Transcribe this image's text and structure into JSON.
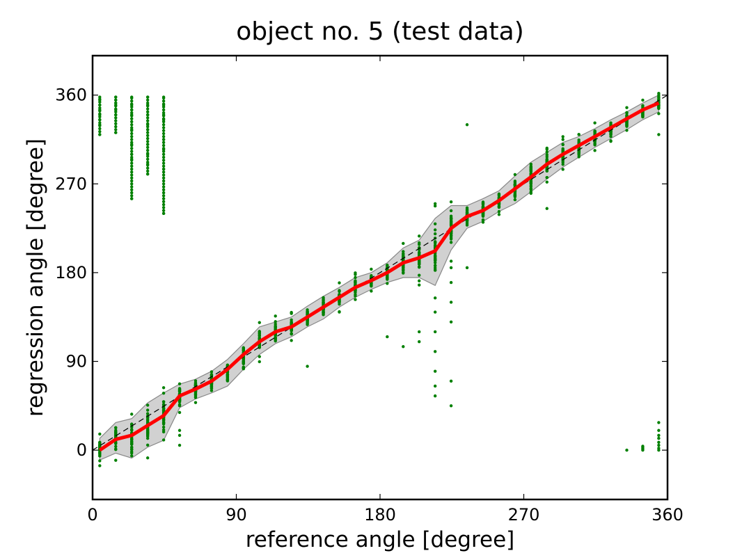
{
  "chart_data": {
    "type": "scatter",
    "title": "object no. 5 (test data)",
    "xlabel": "reference angle [degree]",
    "ylabel": "regression angle [degree]",
    "xlim": [
      0,
      360
    ],
    "ylim": [
      -50,
      400
    ],
    "xticks": [
      "0",
      "90",
      "180",
      "270",
      "360"
    ],
    "yticks": [
      "0",
      "90",
      "180",
      "270",
      "360"
    ],
    "grid": false,
    "colors": {
      "points": "#008000",
      "mean_line": "#ff0000",
      "band_fill": "#cccccc",
      "band_edge": "#888888",
      "identity_line": "#000000"
    },
    "x": [
      4.5,
      14.5,
      24.5,
      34.5,
      44.5,
      54.5,
      64.5,
      74.5,
      84.5,
      94.5,
      104.5,
      114.5,
      124.5,
      134.5,
      144.5,
      154.5,
      164.5,
      174.5,
      184.5,
      194.5,
      204.5,
      214.5,
      224.5,
      234.5,
      244.5,
      254.5,
      264.5,
      274.5,
      284.5,
      294.5,
      304.5,
      314.5,
      324.5,
      334.5,
      344.5,
      354.5
    ],
    "series": [
      {
        "role": "mean",
        "values": [
          0,
          11,
          15,
          25,
          35,
          55,
          62,
          70,
          82,
          97,
          110,
          120,
          125,
          135,
          145,
          155,
          165,
          172,
          180,
          190,
          195,
          202,
          225,
          237,
          243,
          253,
          265,
          277,
          290,
          300,
          309,
          318,
          327,
          336,
          345,
          352
        ]
      },
      {
        "role": "band_upper",
        "values": [
          12,
          28,
          32,
          48,
          58,
          67,
          72,
          80,
          92,
          108,
          125,
          130,
          135,
          146,
          156,
          165,
          175,
          180,
          190,
          205,
          213,
          235,
          248,
          248,
          255,
          263,
          278,
          292,
          302,
          312,
          318,
          326,
          335,
          343,
          352,
          360
        ]
      },
      {
        "role": "band_lower",
        "values": [
          -10,
          -3,
          -8,
          3,
          10,
          43,
          52,
          58,
          65,
          82,
          97,
          108,
          115,
          125,
          133,
          145,
          155,
          163,
          170,
          175,
          175,
          167,
          203,
          225,
          232,
          242,
          250,
          262,
          275,
          287,
          297,
          307,
          316,
          325,
          335,
          343
        ]
      }
    ],
    "identity_line": {
      "from": [
        0,
        0
      ],
      "to": [
        360,
        360
      ]
    },
    "outlier_points": [
      {
        "x": 4.5,
        "y": [
          330,
          335,
          340,
          345,
          350,
          355,
          358,
          320
        ]
      },
      {
        "x": 14.5,
        "y": [
          322,
          340,
          345,
          350,
          352,
          355,
          358
        ]
      },
      {
        "x": 24.5,
        "y": [
          255,
          295,
          300,
          310,
          325,
          340,
          345,
          350,
          358
        ]
      },
      {
        "x": 34.5,
        "y": [
          280,
          290,
          300,
          310,
          325,
          330,
          340,
          350,
          358
        ]
      },
      {
        "x": 44.5,
        "y": [
          240,
          285,
          305,
          315,
          335,
          340,
          350,
          358
        ]
      },
      {
        "x": 54.5,
        "y": [
          5,
          15,
          20
        ]
      },
      {
        "x": 134.5,
        "y": [
          85
        ]
      },
      {
        "x": 184.5,
        "y": [
          115
        ]
      },
      {
        "x": 194.5,
        "y": [
          105
        ]
      },
      {
        "x": 204.5,
        "y": [
          110,
          120
        ]
      },
      {
        "x": 214.5,
        "y": [
          55,
          65,
          80,
          100,
          120,
          140
        ]
      },
      {
        "x": 224.5,
        "y": [
          45,
          70,
          130,
          150,
          170,
          185
        ]
      },
      {
        "x": 234.5,
        "y": [
          185,
          330
        ]
      },
      {
        "x": 284.5,
        "y": [
          245
        ]
      },
      {
        "x": 334.5,
        "y": [
          0
        ]
      },
      {
        "x": 344.5,
        "y": [
          0,
          1,
          2,
          3,
          4
        ]
      },
      {
        "x": 354.5,
        "y": [
          0,
          2,
          5,
          8,
          12,
          15,
          20,
          28,
          320
        ]
      }
    ]
  }
}
